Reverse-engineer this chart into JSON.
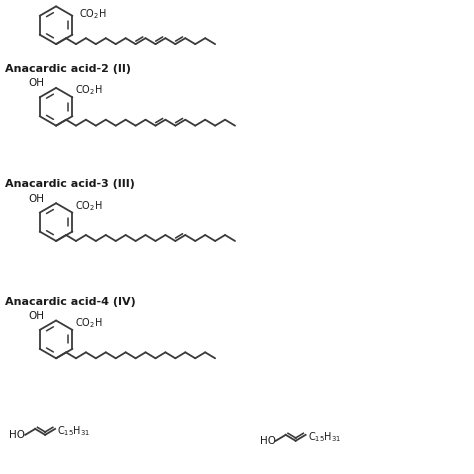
{
  "background_color": "#ffffff",
  "line_color": "#3a3a3a",
  "text_color": "#1a1a1a",
  "fig_width": 4.74,
  "fig_height": 4.74,
  "dpi": 100,
  "labels": {
    "acid2": "Anacardic acid-2 (II)",
    "acid3": "Anacardic acid-3 (III)",
    "acid4": "Anacardic acid-4 (IV)"
  },
  "label_fontsize": 8.0,
  "oh_fontsize": 7.5,
  "co2h_fontsize": 7.0,
  "chain_text_fontsize": 7.0
}
